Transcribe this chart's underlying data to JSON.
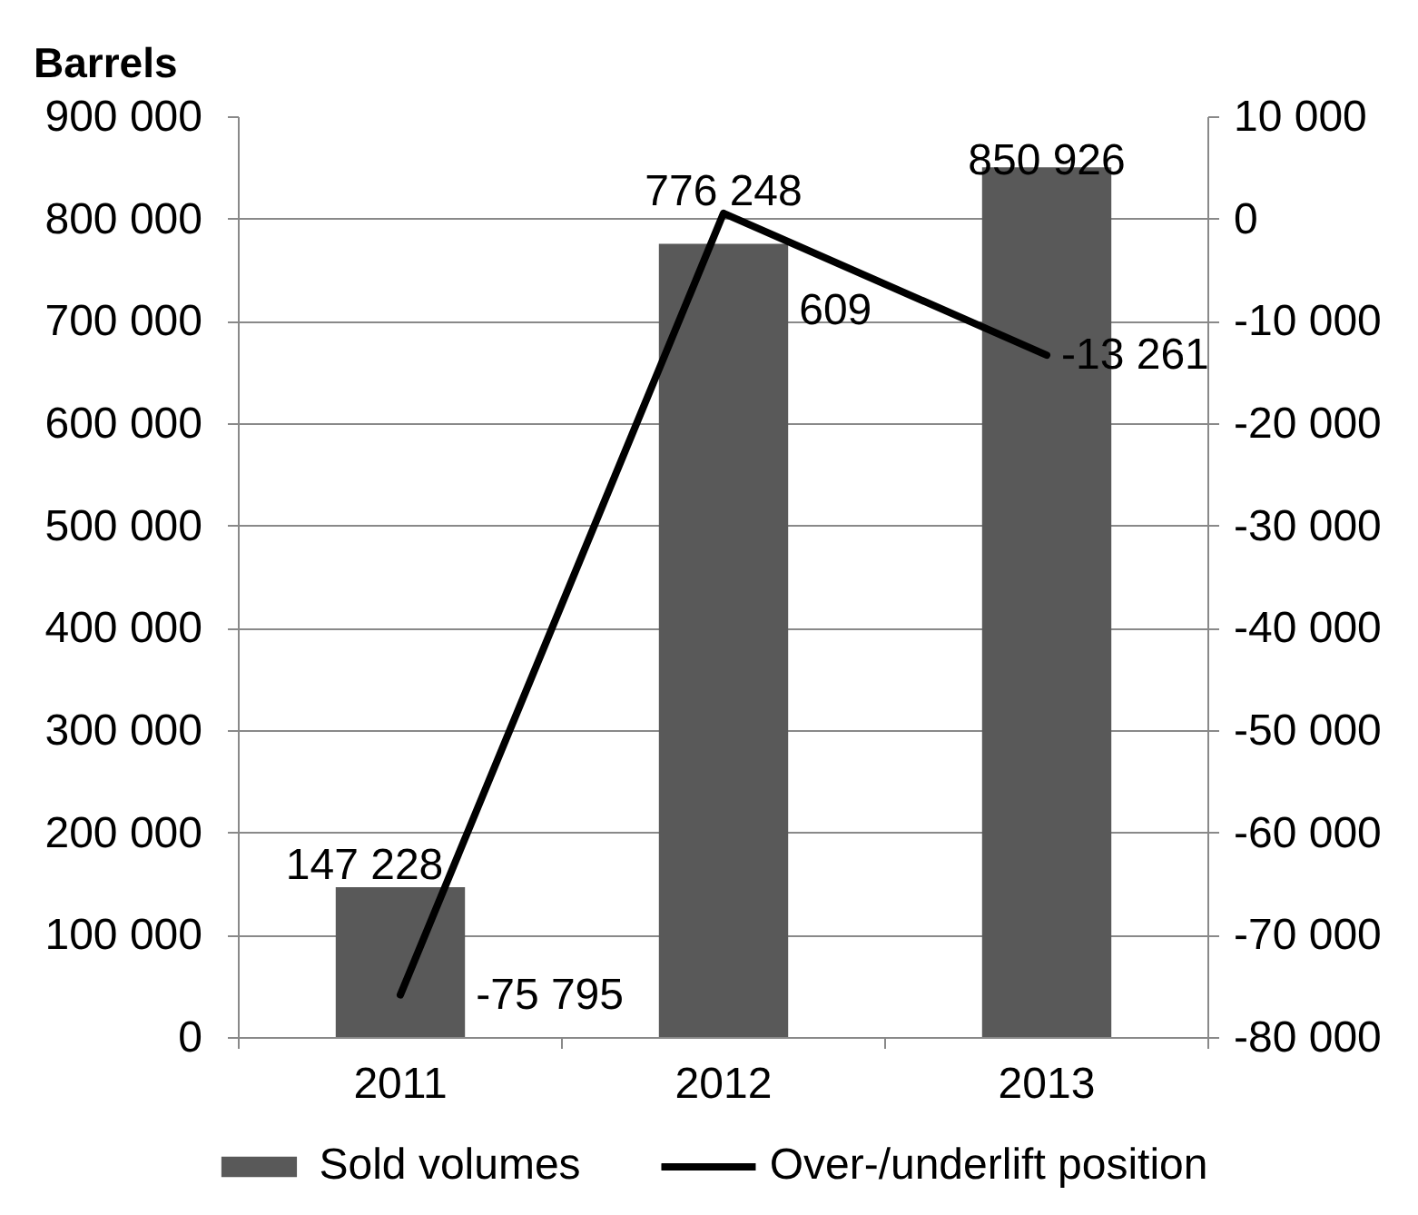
{
  "chart_data": {
    "type": "bar",
    "ylabel": "Barrels",
    "categories": [
      "2011",
      "2012",
      "2013"
    ],
    "series": [
      {
        "name": "Sold volumes",
        "color": "#595959",
        "values": [
          147228,
          776248,
          850926
        ],
        "value_labels": [
          "147 228",
          "776 248",
          "850 926"
        ]
      },
      {
        "name": "Over-/underlift position",
        "type": "line",
        "axis": "y2",
        "color": "#000000",
        "values": [
          -75795,
          609,
          -13261
        ],
        "value_labels": [
          "-75 795",
          "609",
          "-13 261"
        ]
      }
    ],
    "ylim": [
      0,
      900000
    ],
    "yticks": [
      0,
      {
        "value": 100000,
        "label": "100 000"
      },
      {
        "value": 200000,
        "label": "200 000"
      },
      {
        "value": 300000,
        "label": "300 000"
      },
      {
        "value": 400000,
        "label": "400 000"
      },
      {
        "value": 500000,
        "label": "500 000"
      },
      {
        "value": 600000,
        "label": "600 000"
      },
      {
        "value": 700000,
        "label": "700 000"
      },
      {
        "value": 800000,
        "label": "800 000"
      },
      {
        "value": 900000,
        "label": "900 000"
      }
    ],
    "y2lim": [
      -80000,
      10000
    ],
    "y2ticks": [
      {
        "value": -80000,
        "label": "-80 000"
      },
      {
        "value": -70000,
        "label": "-70 000"
      },
      {
        "value": -60000,
        "label": "-60 000"
      },
      {
        "value": -50000,
        "label": "-50 000"
      },
      {
        "value": -40000,
        "label": "-40 000"
      },
      {
        "value": -30000,
        "label": "-30 000"
      },
      {
        "value": -20000,
        "label": "-20 000"
      },
      {
        "value": -10000,
        "label": "-10 000"
      },
      0,
      {
        "value": 10000,
        "label": "10 000"
      }
    ],
    "grid": "y",
    "legend": "bottom"
  }
}
